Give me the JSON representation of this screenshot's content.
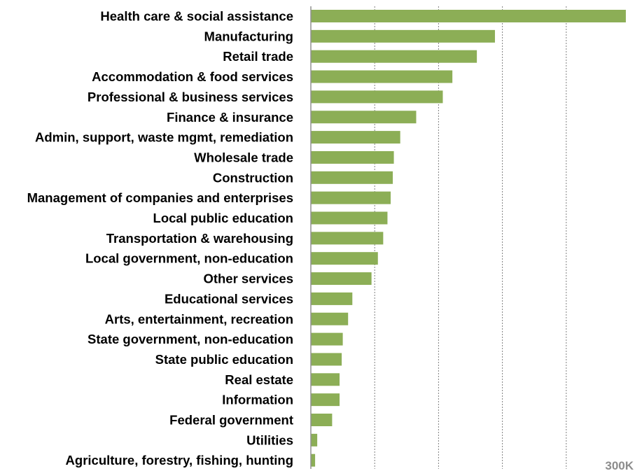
{
  "chart_data": {
    "type": "bar",
    "orientation": "horizontal",
    "categories": [
      "Health care & social assistance",
      "Manufacturing",
      "Retail trade",
      "Accommodation & food services",
      "Professional & business services",
      "Finance & insurance",
      "Admin, support, waste mgmt, remediation",
      "Wholesale trade",
      "Construction",
      "Management of companies and enterprises",
      "Local public education",
      "Transportation & warehousing",
      "Local government, non-education",
      "Other services",
      "Educational services",
      "Arts, entertainment, recreation",
      "State government, non-education",
      "State public education",
      "Real estate",
      "Information",
      "Federal government",
      "Utilities",
      "Agriculture, forestry, fishing, hunting"
    ],
    "values": [
      296,
      173,
      156,
      133,
      124,
      99,
      84,
      78,
      77,
      75,
      72,
      68,
      63,
      57,
      39,
      35,
      30,
      29,
      27,
      27,
      20,
      6,
      4
    ],
    "xlim": [
      0,
      300
    ],
    "gridlines": [
      60,
      120,
      180,
      240
    ],
    "tick_labels": [
      {
        "value": 300,
        "label": "300K"
      }
    ],
    "grid": true,
    "legend": "none",
    "title": "",
    "xlabel": "",
    "ylabel": ""
  },
  "colors": {
    "bar": "#8cae56",
    "grid": "#808080",
    "axis": "#909090",
    "tick_text": "#8c8c8c",
    "label_text": "#000000"
  }
}
